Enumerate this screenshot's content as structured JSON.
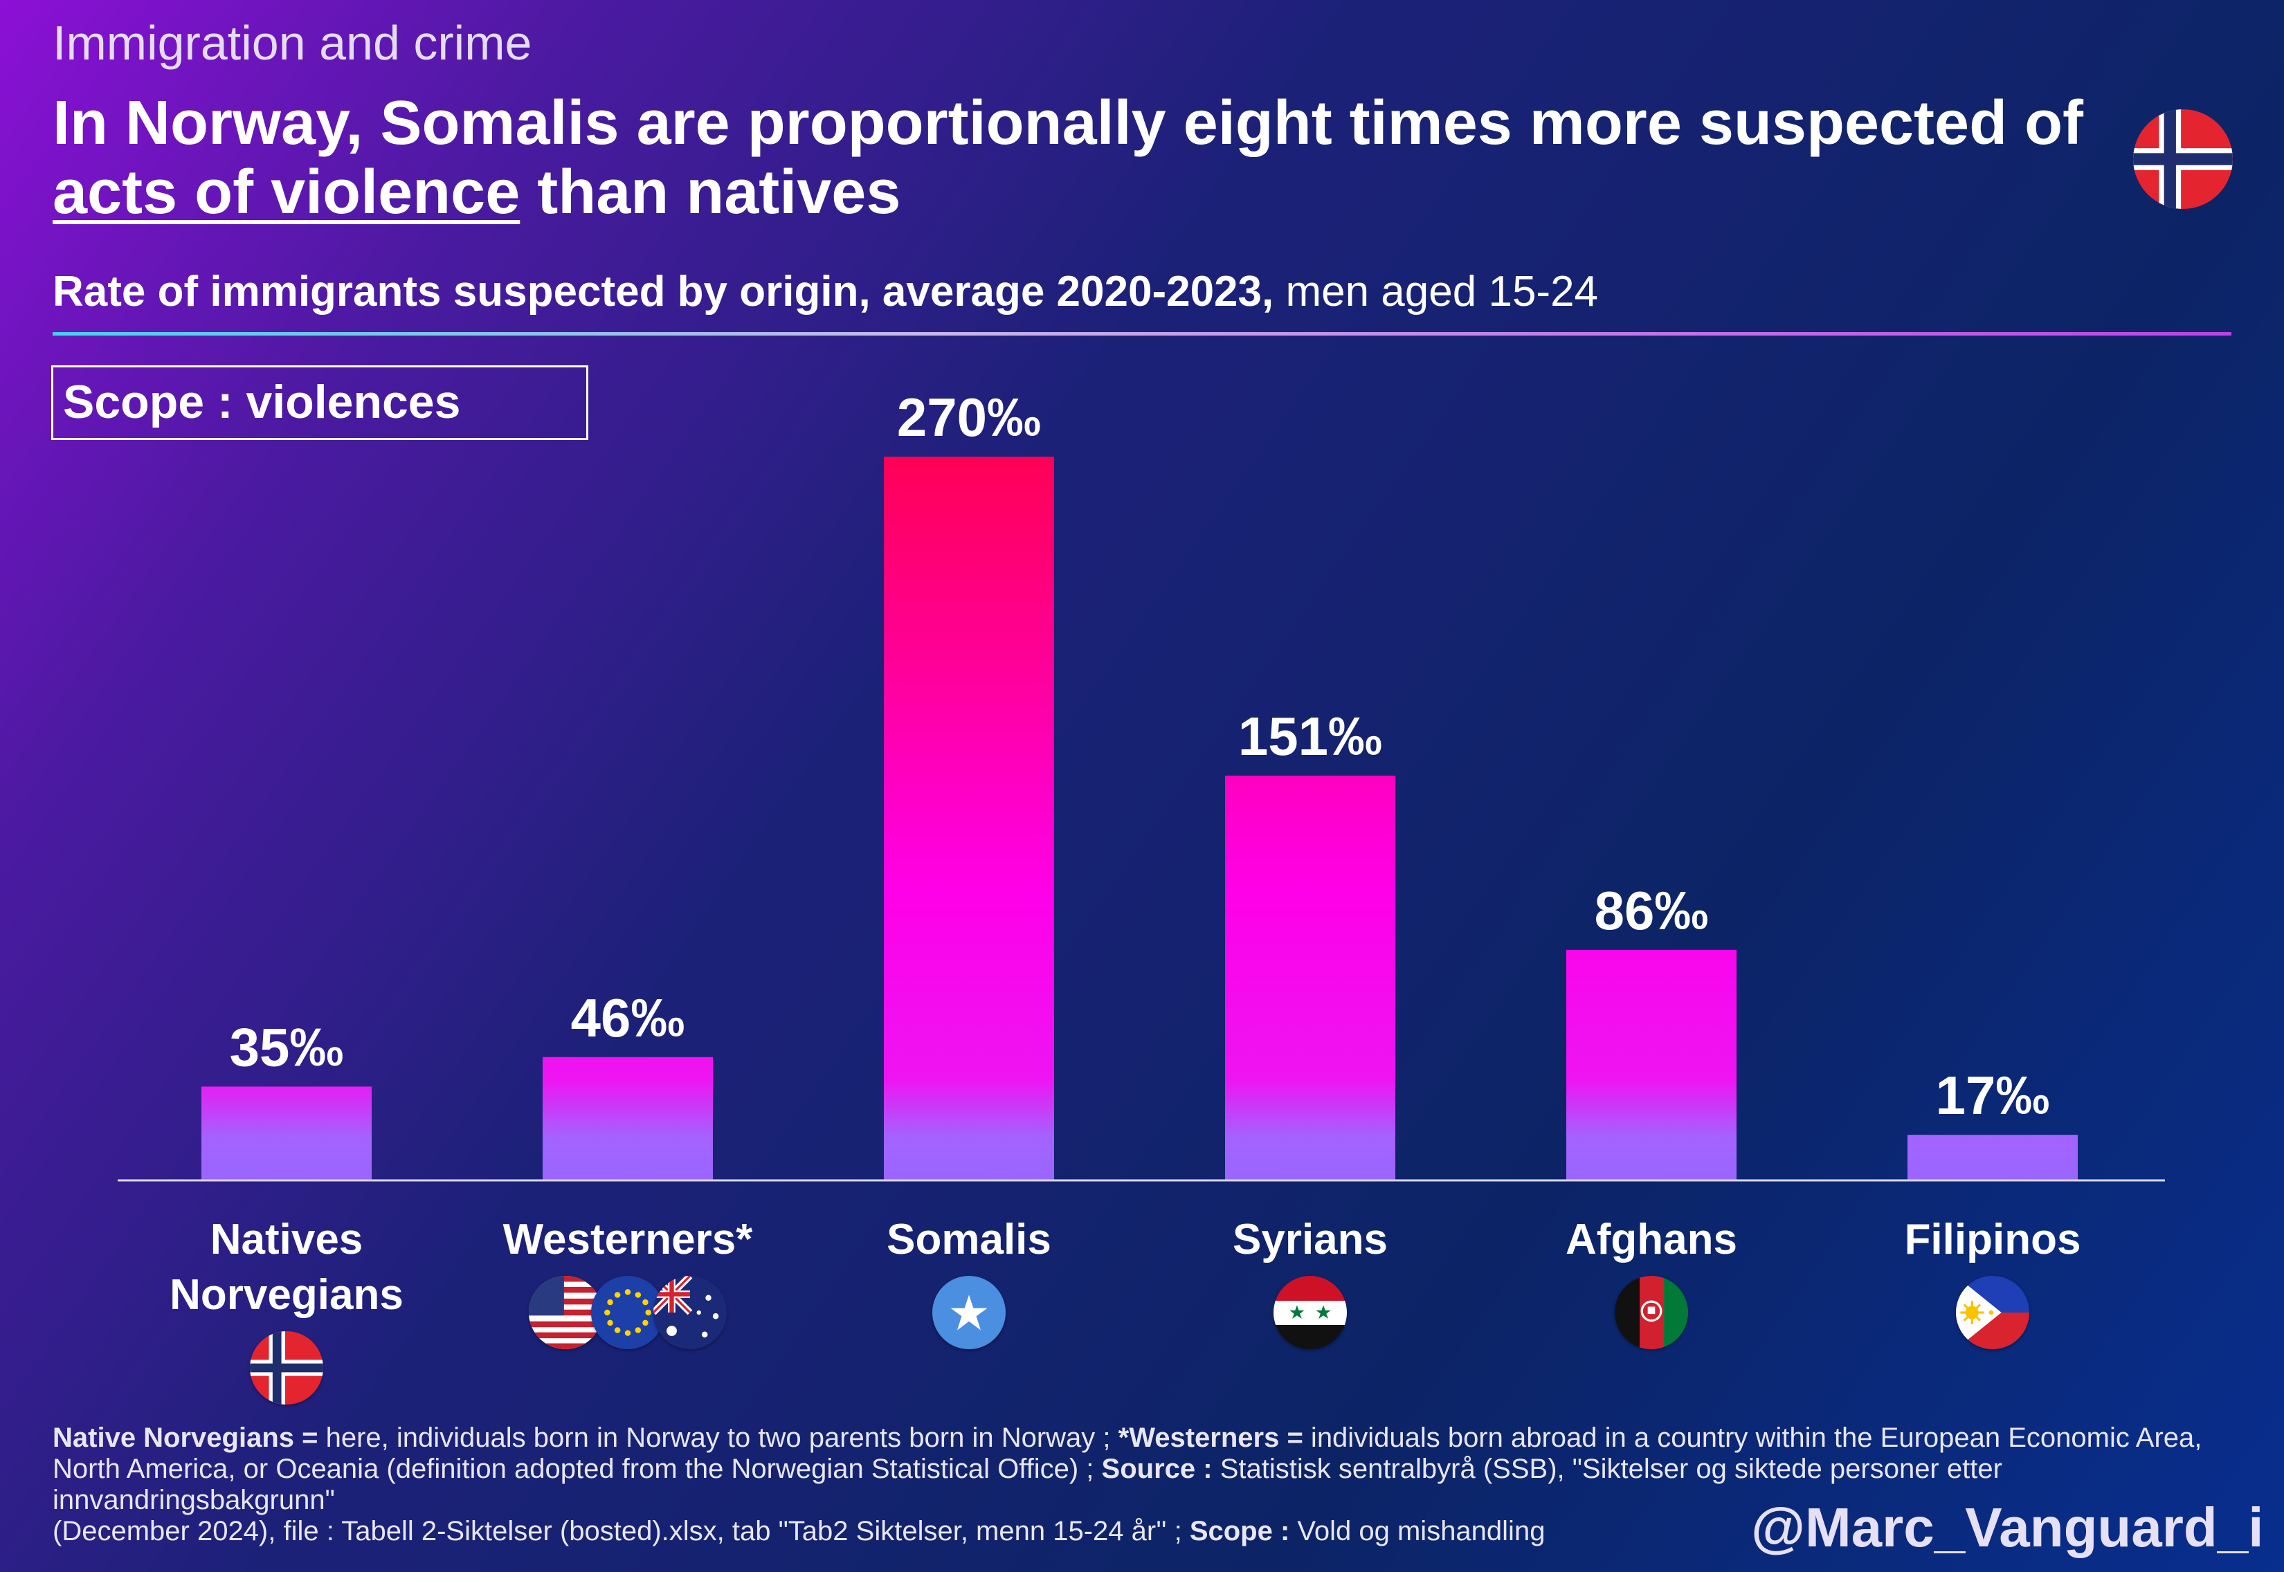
{
  "header": {
    "kicker": "Immigration and crime",
    "title_part1": "In Norway, Somalis are proportionally eight times more suspected of ",
    "title_underlined": "acts of violence",
    "title_part2": " than natives",
    "subtitle_bold": "Rate of immigrants suspected by origin, average 2020-2023,",
    "subtitle_regular": " men aged 15-24",
    "scope_label": "Scope : violences"
  },
  "chart_data": {
    "type": "bar",
    "title": "Rate of immigrants suspected by origin, average 2020-2023, men aged 15-24",
    "unit": "‰",
    "categories": [
      "Natives Norvegians",
      "Westerners*",
      "Somalis",
      "Syrians",
      "Afghans",
      "Filipinos"
    ],
    "category_lines": [
      [
        "Natives",
        "Norvegians"
      ],
      [
        "Westerners*"
      ],
      [
        "Somalis"
      ],
      [
        "Syrians"
      ],
      [
        "Afghans"
      ],
      [
        "Filipinos"
      ]
    ],
    "values": [
      35,
      46,
      270,
      151,
      86,
      17
    ],
    "value_labels": [
      "35‰",
      "46‰",
      "270‰",
      "151‰",
      "86‰",
      "17‰"
    ],
    "flags": [
      [
        "norway-flag"
      ],
      [
        "usa-flag",
        "eu-flag",
        "australia-flag"
      ],
      [
        "somalia-flag"
      ],
      [
        "syria-flag"
      ],
      [
        "afghanistan-flag"
      ],
      [
        "philippines-flag"
      ]
    ],
    "ylim": [
      0,
      300
    ],
    "colors": {
      "low": "#a066ff",
      "mid": "#ff00ee",
      "high": "#ff0055"
    }
  },
  "footnote": {
    "native_term": "Native Norvegians =",
    "native_def": " here, individuals born in Norway to two parents born in Norway ; ",
    "west_term": "*Westerners =",
    "west_def": " individuals born abroad in a country within the European Economic Area, North America, or Oceania (definition adopted from the Norwegian Statistical Office) ; ",
    "source_term": "Source :",
    "source_def": " Statistisk sentralbyrå (SSB), \"Siktelser og siktede personer etter innvandringsbakgrunn\"",
    "source_def2": "(December 2024), file : Tabell 2-Siktelser (bosted).xlsx, tab \"Tab2 Siktelser, menn 15-24 år'' ; ",
    "scope_term": "Scope :",
    "scope_def": " Vold og mishandling"
  },
  "handle": "@Marc_Vanguard_i"
}
